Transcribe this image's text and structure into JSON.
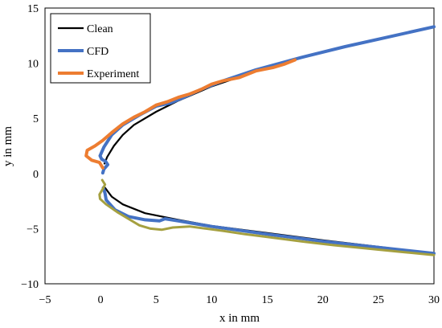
{
  "chart_data": {
    "type": "line",
    "xlabel": "x in mm",
    "ylabel": "y in mm",
    "xlim": [
      -5,
      30
    ],
    "ylim": [
      -10,
      15
    ],
    "xticks": [
      -5,
      0,
      5,
      10,
      15,
      20,
      25,
      30
    ],
    "yticks": [
      -10,
      -5,
      0,
      5,
      10,
      15
    ],
    "grid": false,
    "legend_position": "top-left",
    "series": [
      {
        "name": "Clean",
        "color": "#000000",
        "segments": [
          [
            [
              13.5,
              9.1
            ],
            [
              10,
              7.9
            ],
            [
              7,
              6.6
            ],
            [
              5,
              5.6
            ],
            [
              3,
              4.4
            ],
            [
              2,
              3.5
            ],
            [
              1.2,
              2.5
            ],
            [
              0.6,
              1.5
            ],
            [
              0.35,
              0.9
            ]
          ],
          [
            [
              0.4,
              -1.3
            ],
            [
              1,
              -2.1
            ],
            [
              2,
              -2.8
            ],
            [
              4,
              -3.6
            ],
            [
              7,
              -4.2
            ],
            [
              10,
              -4.75
            ],
            [
              15,
              -5.4
            ],
            [
              20,
              -6.05
            ],
            [
              25,
              -6.65
            ],
            [
              30,
              -7.25
            ]
          ]
        ]
      },
      {
        "name": "CFD",
        "color": "#4472C4",
        "segments": [
          [
            [
              30,
              13.3
            ],
            [
              26,
              12.4
            ],
            [
              22,
              11.5
            ],
            [
              18,
              10.5
            ],
            [
              14,
              9.4
            ],
            [
              11,
              8.4
            ],
            [
              9,
              7.6
            ],
            [
              7.5,
              6.9
            ],
            [
              6.3,
              6.4
            ],
            [
              5,
              6.1
            ],
            [
              3.5,
              5.3
            ],
            [
              2,
              4.4
            ],
            [
              1,
              3.5
            ],
            [
              0.3,
              2.4
            ],
            [
              -0.05,
              1.6
            ],
            [
              0.1,
              1.3
            ],
            [
              0.45,
              1.1
            ],
            [
              0.65,
              0.8
            ],
            [
              0.3,
              0.4
            ],
            [
              0.2,
              0.05
            ]
          ],
          [
            [
              0.25,
              -1.3
            ],
            [
              0.4,
              -1.8
            ],
            [
              0.5,
              -2.4
            ],
            [
              1.3,
              -3.3
            ],
            [
              2.5,
              -3.9
            ],
            [
              4,
              -4.2
            ],
            [
              5.3,
              -4.3
            ],
            [
              5.8,
              -4.1
            ],
            [
              7,
              -4.3
            ],
            [
              10,
              -4.8
            ],
            [
              15,
              -5.5
            ],
            [
              20,
              -6.15
            ],
            [
              25,
              -6.7
            ],
            [
              30,
              -7.25
            ]
          ]
        ]
      },
      {
        "name": "Experiment",
        "color": "#ED7D31",
        "segments": [
          [
            [
              17.5,
              10.3
            ],
            [
              16.5,
              9.9
            ],
            [
              15.5,
              9.6
            ],
            [
              14,
              9.3
            ],
            [
              12.5,
              8.7
            ],
            [
              11,
              8.4
            ],
            [
              10,
              8.1
            ],
            [
              9,
              7.6
            ],
            [
              8,
              7.2
            ],
            [
              7,
              6.9
            ],
            [
              6,
              6.5
            ],
            [
              5,
              6.2
            ],
            [
              4,
              5.6
            ],
            [
              3,
              5.1
            ],
            [
              2,
              4.5
            ],
            [
              1,
              3.7
            ],
            [
              0.2,
              3.0
            ],
            [
              -0.5,
              2.5
            ],
            [
              -1.2,
              2.1
            ],
            [
              -1.3,
              1.6
            ],
            [
              -0.8,
              1.2
            ],
            [
              -0.1,
              1.0
            ],
            [
              0.2,
              0.5
            ]
          ]
        ]
      },
      {
        "name": "",
        "color": "#A5A040",
        "segments": [
          [
            [
              0.15,
              -0.6
            ],
            [
              0.4,
              -1.0
            ],
            [
              0.2,
              -1.4
            ],
            [
              -0.1,
              -1.9
            ],
            [
              -0.05,
              -2.3
            ],
            [
              0.5,
              -2.8
            ],
            [
              1.5,
              -3.5
            ],
            [
              2.5,
              -4.1
            ],
            [
              3.5,
              -4.7
            ],
            [
              4.5,
              -5.0
            ],
            [
              5.5,
              -5.1
            ],
            [
              6.5,
              -4.9
            ],
            [
              8,
              -4.8
            ],
            [
              9.5,
              -5.0
            ],
            [
              11,
              -5.2
            ],
            [
              13,
              -5.5
            ],
            [
              15,
              -5.75
            ],
            [
              18,
              -6.15
            ],
            [
              21,
              -6.5
            ],
            [
              24,
              -6.8
            ],
            [
              27,
              -7.1
            ],
            [
              30,
              -7.4
            ]
          ]
        ]
      }
    ]
  }
}
